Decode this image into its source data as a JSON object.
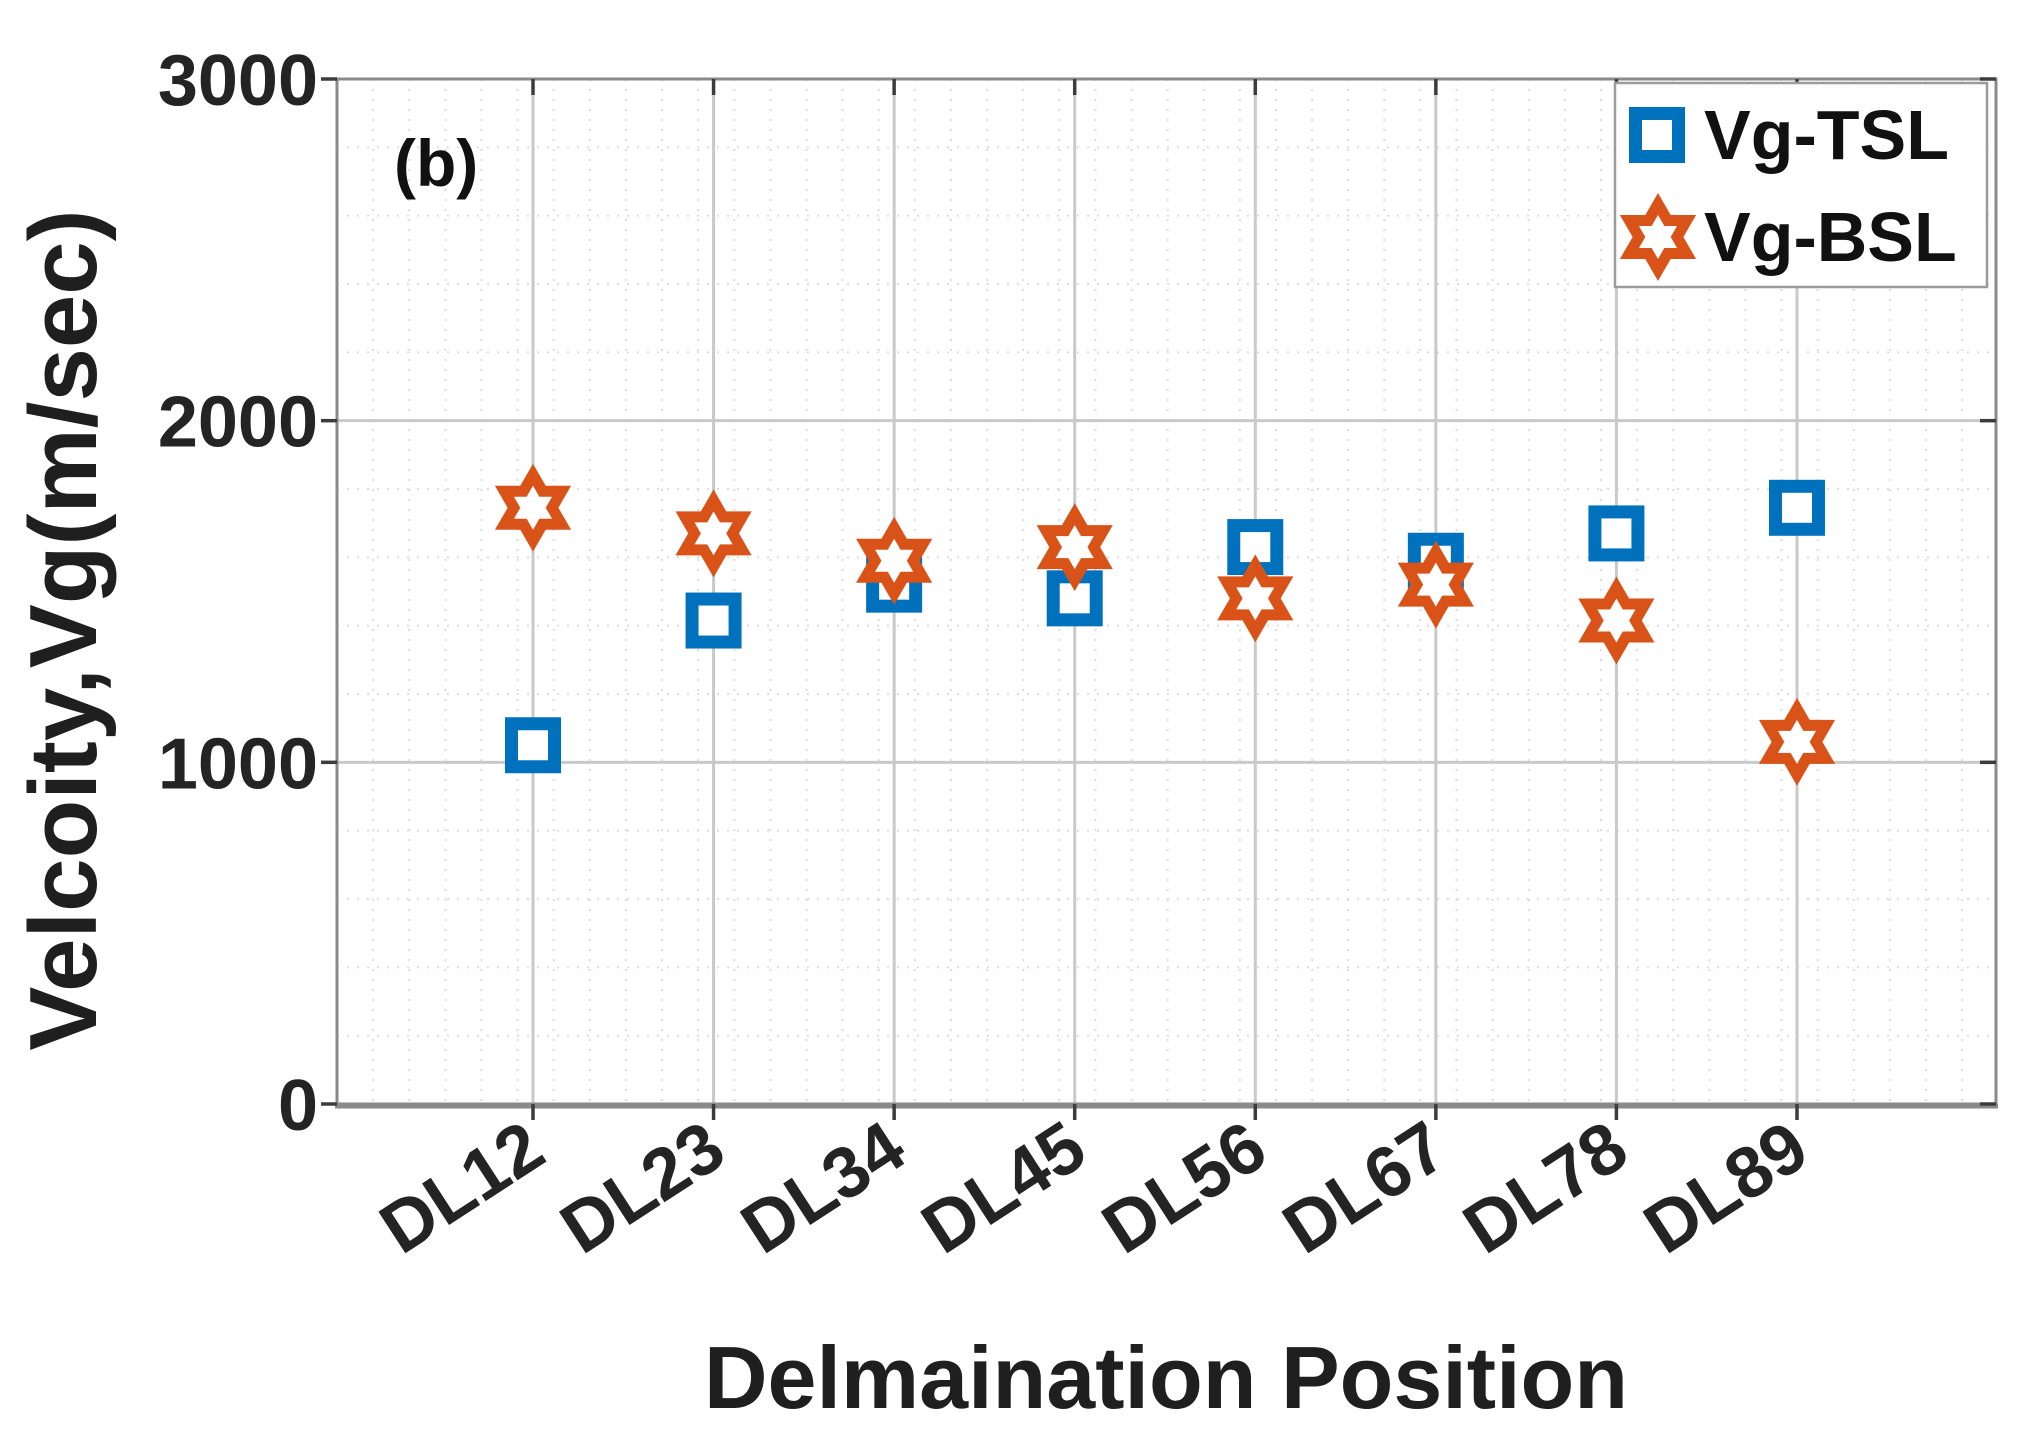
{
  "figure_label": "(b)",
  "legend": {
    "position": "northeast",
    "items": [
      {
        "label": "Vg-TSL",
        "marker": "square-icon",
        "color": "#0072BD"
      },
      {
        "label": "Vg-BSL",
        "marker": "hexagram-icon",
        "color": "#D95319"
      }
    ]
  },
  "chart_data": {
    "type": "scatter",
    "title": "",
    "xlabel": "Delmaination Position",
    "ylabel": "Velcoity,Vg(m/sec)",
    "categories": [
      "DL12",
      "DL23",
      "DL34",
      "DL45",
      "DL56",
      "DL67",
      "DL78",
      "DL89"
    ],
    "series": [
      {
        "name": "Vg-TSL",
        "marker": "square",
        "color": "#0072BD",
        "values": [
          1050,
          1415,
          1520,
          1480,
          1630,
          1590,
          1670,
          1745
        ]
      },
      {
        "name": "Vg-BSL",
        "marker": "hexagram",
        "color": "#D95319",
        "values": [
          1745,
          1670,
          1590,
          1630,
          1480,
          1520,
          1415,
          1060
        ]
      }
    ],
    "ylim": [
      0,
      3000
    ],
    "yticks": [
      0,
      1000,
      2000,
      3000
    ],
    "xtick_rotation": 33,
    "grid": true,
    "minor_grid": true,
    "legend_position": "northeast"
  },
  "colors": {
    "background": "#ffffff",
    "axis_line": "#8a8a8a",
    "major_grid": "#c9c9c9",
    "minor_grid": "#dcdcdc",
    "tick_mark": "#3c3c3c",
    "text": "#242424"
  }
}
